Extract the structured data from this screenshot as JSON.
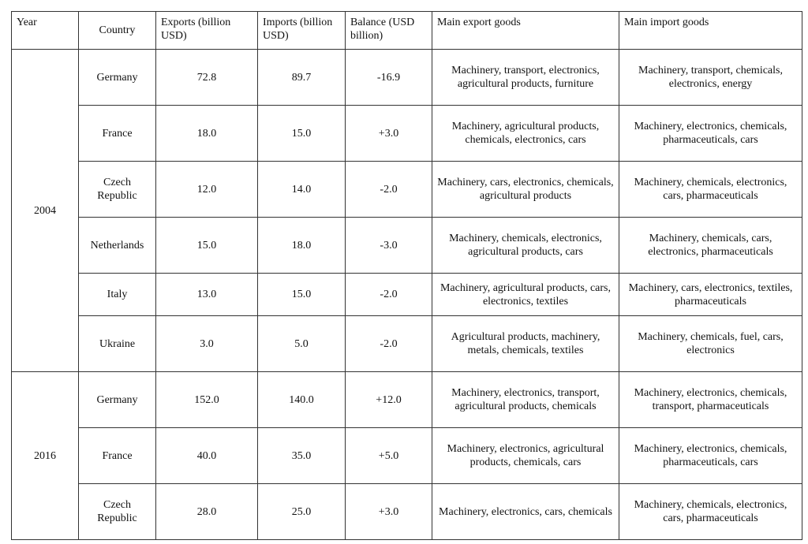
{
  "table": {
    "header": [
      "Year",
      "Country",
      "Exports (billion USD)",
      "Imports (billion USD)",
      "Balance (USD billion)",
      "Main export goods",
      "Main import goods"
    ],
    "groups": [
      {
        "year": "2004",
        "rows": [
          [
            "Germany",
            "72.8",
            "89.7",
            "-16.9",
            "Machinery, transport, electronics, agricultural products, furniture",
            "Machinery, transport, chemicals, electronics, energy"
          ],
          [
            "France",
            "18.0",
            "15.0",
            "+3.0",
            "Machinery, agricultural products, chemicals, electronics, cars",
            "Machinery, electronics, chemicals, pharmaceuticals, cars"
          ],
          [
            "Czech Republic",
            "12.0",
            "14.0",
            "-2.0",
            "Machinery, cars, electronics, chemicals, agricultural products",
            "Machinery, chemicals, electronics, cars, pharmaceuticals"
          ],
          [
            "Netherlands",
            "15.0",
            "18.0",
            "-3.0",
            "Machinery, chemicals, electronics, agricultural products, cars",
            "Machinery, chemicals, cars, electronics, pharmaceuticals"
          ],
          [
            "Italy",
            "13.0",
            "15.0",
            "-2.0",
            "Machinery, agricultural products, cars, electronics, textiles",
            "Machinery, cars, electronics, textiles, pharmaceuticals"
          ],
          [
            "Ukraine",
            "3.0",
            "5.0",
            "-2.0",
            "Agricultural products, machinery, metals, chemicals, textiles",
            "Machinery, chemicals, fuel, cars, electronics"
          ]
        ]
      },
      {
        "year": "2016",
        "rows": [
          [
            "Germany",
            "152.0",
            "140.0",
            "+12.0",
            "Machinery, electronics, transport, agricultural products, chemicals",
            "Machinery, electronics, chemicals, transport, pharmaceuticals"
          ],
          [
            "France",
            "40.0",
            "35.0",
            "+5.0",
            "Machinery, electronics, agricultural products, chemicals, cars",
            "Machinery, electronics, chemicals, pharmaceuticals, cars"
          ],
          [
            "Czech Republic",
            "28.0",
            "25.0",
            "+3.0",
            "Machinery, electronics, cars, chemicals",
            "Machinery, chemicals, electronics, cars, pharmaceuticals"
          ]
        ]
      }
    ]
  }
}
